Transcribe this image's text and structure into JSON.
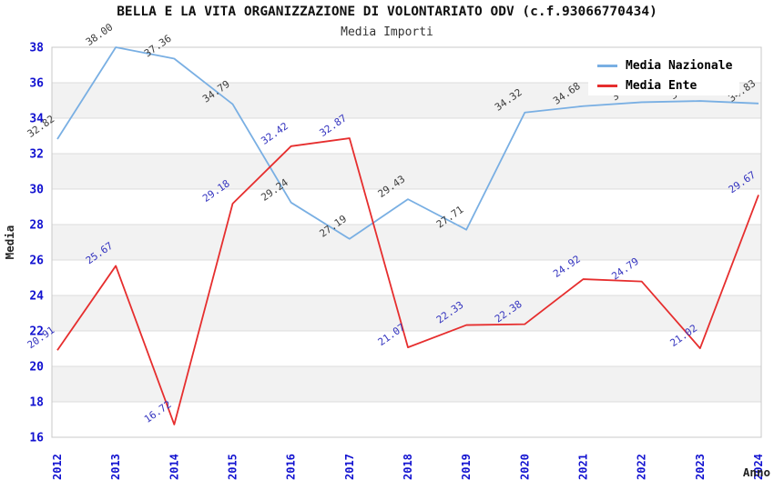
{
  "header": {
    "title": "BELLA E LA VITA ORGANIZZAZIONE DI VOLONTARIATO ODV (c.f.93066770434)",
    "subtitle": "Media Importi"
  },
  "legend": {
    "position": "top-right",
    "items": [
      {
        "label": "Media Nazionale",
        "color": "#79afe3"
      },
      {
        "label": "Media Ente",
        "color": "#e62e2e"
      }
    ]
  },
  "axes": {
    "ylabel": "Media",
    "xlabel": "Anno",
    "yticks": [
      38,
      36,
      34,
      32,
      30,
      28,
      26,
      24,
      22,
      20,
      18,
      16
    ],
    "xticks": [
      "2012",
      "2013",
      "2014",
      "2015",
      "2016",
      "2017",
      "2018",
      "2019",
      "2020",
      "2021",
      "2022",
      "2023",
      "2024"
    ],
    "tick_color": "#1212d0",
    "axis_title_color": "#222222"
  },
  "style": {
    "band_gray": "#f2f2f2",
    "grid_line": "#dcdcdc",
    "plot_border": "#c8c8c8",
    "background": "#ffffff"
  },
  "chart_data": {
    "type": "line",
    "title": "BELLA E LA VITA ORGANIZZAZIONE DI VOLONTARIATO ODV (c.f.93066770434)",
    "subtitle": "Media Importi",
    "xlabel": "Anno",
    "ylabel": "Media",
    "ylim": [
      16,
      38
    ],
    "ytick_step": 2,
    "grid": "alternating-horizontal-bands",
    "legend_position": "top-right",
    "x": [
      2012,
      2013,
      2014,
      2015,
      2016,
      2017,
      2018,
      2019,
      2020,
      2021,
      2022,
      2023,
      2024
    ],
    "series": [
      {
        "name": "Media Nazionale",
        "color": "#79afe3",
        "label_color": "#3c3c3c",
        "values": [
          32.82,
          38.0,
          37.36,
          34.79,
          29.24,
          27.19,
          29.43,
          27.71,
          34.32,
          34.68,
          34.9,
          34.97,
          34.83
        ],
        "point_labels": [
          "32.82",
          "38.00",
          "37.36",
          "34.79",
          "29.24",
          "27.19",
          "29.43",
          "27.71",
          "34.32",
          "34.68",
          "34.90",
          "34.97",
          "34.83"
        ]
      },
      {
        "name": "Media Ente",
        "color": "#e62e2e",
        "label_color": "#3434bf",
        "values": [
          20.91,
          25.67,
          16.72,
          29.18,
          32.42,
          32.87,
          21.07,
          22.33,
          22.38,
          24.92,
          24.79,
          21.02,
          29.67
        ],
        "point_labels": [
          "20.91",
          "25.67",
          "16.72",
          "29.18",
          "32.42",
          "32.87",
          "21.07",
          "22.33",
          "22.38",
          "24.92",
          "24.79",
          "21.02",
          "29.67"
        ]
      }
    ]
  }
}
